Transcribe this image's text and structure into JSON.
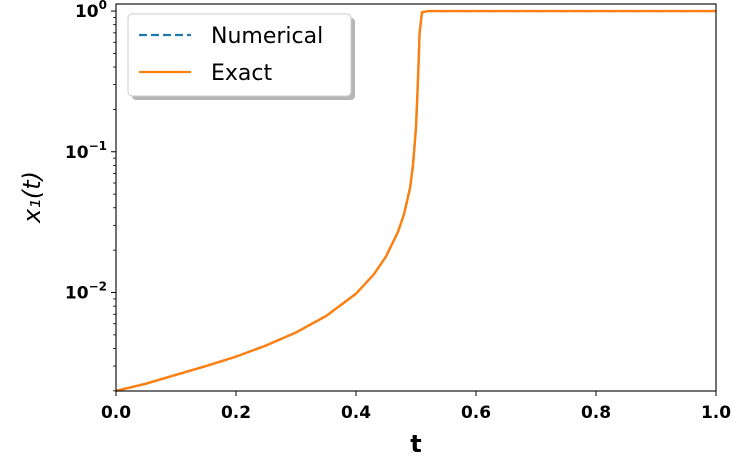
{
  "chart_data": {
    "type": "line",
    "title": "",
    "xlabel": "t",
    "ylabel": "x₁(t)",
    "xlim": [
      0.0,
      1.0
    ],
    "ylim_log10": [
      -2.7,
      0.05
    ],
    "yscale": "log",
    "grid": false,
    "legend_position": "top-left",
    "x_ticks": [
      0.0,
      0.2,
      0.4,
      0.6,
      0.8,
      1.0
    ],
    "x_tick_labels": [
      "0.0",
      "0.2",
      "0.4",
      "0.6",
      "0.8",
      "1.0"
    ],
    "y_ticks": [
      0.01,
      0.1,
      1
    ],
    "y_tick_labels": [
      {
        "base": "10",
        "exp": "−2"
      },
      {
        "base": "10",
        "exp": "−1"
      },
      {
        "base": "10",
        "exp": "0"
      }
    ],
    "series": [
      {
        "name": "Numerical",
        "color": "#1f77b4",
        "style": "dashed",
        "x": [
          0.0,
          0.05,
          0.1,
          0.15,
          0.2,
          0.25,
          0.3,
          0.35,
          0.4,
          0.43,
          0.45,
          0.47,
          0.48,
          0.49,
          0.495,
          0.5,
          0.503,
          0.506,
          0.51,
          0.52,
          0.6,
          0.8,
          1.0
        ],
        "y": [
          0.002,
          0.00225,
          0.0026,
          0.003,
          0.0035,
          0.0042,
          0.0052,
          0.0068,
          0.0098,
          0.0135,
          0.018,
          0.027,
          0.036,
          0.055,
          0.08,
          0.15,
          0.3,
          0.7,
          0.98,
          1.0,
          1.0,
          1.0,
          1.0
        ]
      },
      {
        "name": "Exact",
        "color": "#ff7f0e",
        "style": "solid",
        "x": [
          0.0,
          0.05,
          0.1,
          0.15,
          0.2,
          0.25,
          0.3,
          0.35,
          0.4,
          0.43,
          0.45,
          0.47,
          0.48,
          0.49,
          0.495,
          0.5,
          0.503,
          0.506,
          0.51,
          0.52,
          0.6,
          0.8,
          1.0
        ],
        "y": [
          0.002,
          0.00225,
          0.0026,
          0.003,
          0.0035,
          0.0042,
          0.0052,
          0.0068,
          0.0098,
          0.0135,
          0.018,
          0.027,
          0.036,
          0.055,
          0.08,
          0.15,
          0.3,
          0.7,
          0.98,
          1.0,
          1.0,
          1.0,
          1.0
        ]
      }
    ]
  }
}
